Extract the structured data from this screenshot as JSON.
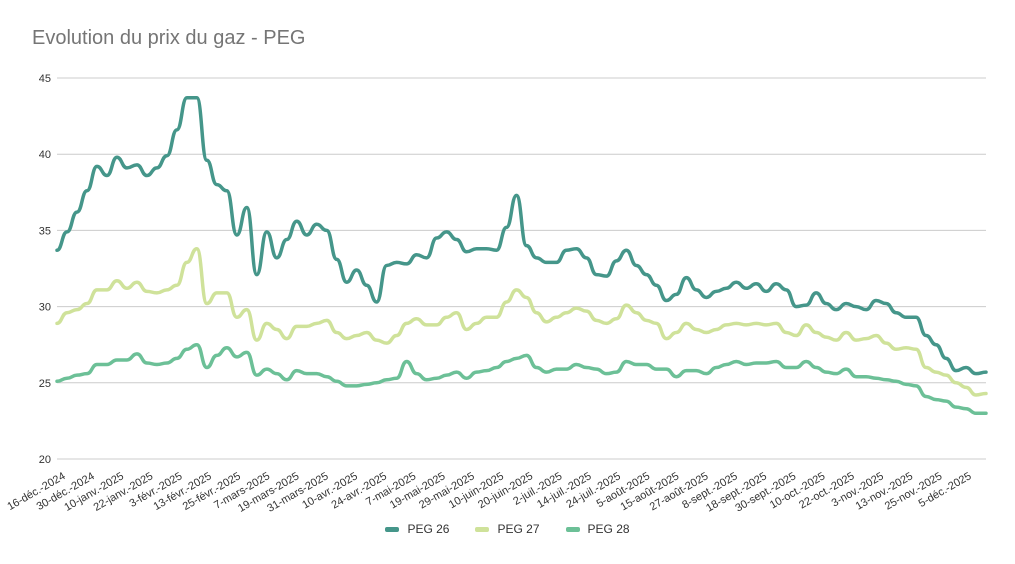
{
  "chart_data": {
    "type": "line",
    "title": "Evolution du prix du gaz - PEG",
    "xlabel": "",
    "ylabel": "",
    "ylim": [
      20,
      45
    ],
    "yticks": [
      20,
      25,
      30,
      35,
      40,
      45
    ],
    "grid": true,
    "legend_position": "bottom",
    "x_tick_labels": [
      "16-déc.-2024",
      "30-déc.-2024",
      "10-janv.-2025",
      "22-janv.-2025",
      "3-févr.-2025",
      "13-févr.-2025",
      "25-févr.-2025",
      "7-mars-2025",
      "19-mars-2025",
      "31-mars-2025",
      "10-avr.-2025",
      "24-avr.-2025",
      "7-mai-2025",
      "19-mai-2025",
      "29-mai-2025",
      "10-juin-2025",
      "20-juin-2025",
      "2-juil.-2025",
      "14-juil.-2025",
      "24-juil.-2025",
      "5-août-2025",
      "15-août-2025",
      "27-août-2025",
      "8-sept.-2025",
      "18-sept.-2025",
      "30-sept.-2025",
      "10-oct.-2025",
      "22-oct.-2025",
      "3-nov.-2025",
      "13-nov.-2025",
      "25-nov.-2025",
      "5-déc.-2025"
    ],
    "series": [
      {
        "name": "PEG 26",
        "color": "#45968a",
        "values": [
          33.7,
          34.9,
          36.2,
          37.6,
          39.2,
          38.6,
          39.8,
          39.1,
          39.3,
          38.6,
          39.1,
          39.9,
          41.6,
          43.7,
          43.7,
          39.6,
          38.0,
          37.6,
          34.7,
          36.5,
          32.1,
          34.9,
          33.2,
          34.4,
          35.6,
          34.7,
          35.4,
          35.0,
          33.1,
          31.6,
          32.4,
          31.4,
          30.3,
          32.7,
          32.9,
          32.8,
          33.4,
          33.2,
          34.5,
          34.9,
          34.4,
          33.6,
          33.8,
          33.8,
          33.7,
          35.2,
          37.3,
          34.0,
          33.2,
          32.9,
          32.9,
          33.7,
          33.8,
          33.2,
          32.1,
          32.0,
          33.0,
          33.7,
          32.7,
          32.1,
          31.4,
          30.4,
          30.8,
          31.9,
          31.1,
          30.6,
          31.0,
          31.2,
          31.6,
          31.2,
          31.5,
          31.0,
          31.5,
          31.1,
          30.0,
          30.1,
          30.9,
          30.2,
          29.8,
          30.2,
          30.0,
          29.8,
          30.4,
          30.2,
          29.6,
          29.3,
          29.3,
          28.1,
          27.5,
          26.6,
          25.8,
          26.0,
          25.6,
          25.7
        ]
      },
      {
        "name": "PEG 27",
        "color": "#cfe29a",
        "values": [
          28.9,
          29.6,
          29.8,
          30.2,
          31.1,
          31.1,
          31.7,
          31.2,
          31.6,
          31.0,
          30.9,
          31.1,
          31.4,
          32.9,
          33.8,
          30.2,
          30.9,
          30.9,
          29.3,
          29.8,
          27.8,
          28.9,
          28.5,
          27.9,
          28.7,
          28.7,
          28.9,
          29.1,
          28.3,
          27.9,
          28.1,
          28.3,
          27.8,
          27.6,
          28.1,
          28.9,
          29.2,
          28.8,
          28.8,
          29.3,
          29.6,
          28.5,
          28.9,
          29.3,
          29.3,
          30.3,
          31.1,
          30.6,
          29.6,
          29.0,
          29.3,
          29.6,
          29.9,
          29.7,
          29.1,
          28.9,
          29.2,
          30.1,
          29.6,
          29.1,
          28.9,
          27.9,
          28.3,
          28.9,
          28.5,
          28.3,
          28.5,
          28.8,
          28.9,
          28.8,
          28.9,
          28.8,
          28.9,
          28.3,
          28.1,
          28.8,
          28.3,
          28.0,
          27.8,
          28.3,
          27.8,
          27.9,
          28.1,
          27.6,
          27.2,
          27.3,
          27.2,
          26.0,
          25.7,
          25.5,
          25.0,
          24.7,
          24.2,
          24.3
        ]
      },
      {
        "name": "PEG 28",
        "color": "#6cc097",
        "values": [
          25.1,
          25.3,
          25.5,
          25.6,
          26.2,
          26.2,
          26.5,
          26.5,
          26.9,
          26.3,
          26.2,
          26.3,
          26.6,
          27.2,
          27.5,
          26.0,
          26.8,
          27.3,
          26.7,
          27.0,
          25.5,
          25.9,
          25.6,
          25.2,
          25.8,
          25.6,
          25.6,
          25.4,
          25.1,
          24.8,
          24.8,
          24.9,
          25.0,
          25.2,
          25.3,
          26.4,
          25.6,
          25.2,
          25.3,
          25.5,
          25.7,
          25.3,
          25.7,
          25.8,
          26.0,
          26.4,
          26.6,
          26.8,
          26.0,
          25.7,
          25.9,
          25.9,
          26.2,
          26.0,
          25.9,
          25.6,
          25.7,
          26.4,
          26.2,
          26.2,
          25.9,
          25.9,
          25.4,
          25.8,
          25.8,
          25.6,
          26.0,
          26.2,
          26.4,
          26.2,
          26.3,
          26.3,
          26.4,
          26.0,
          26.0,
          26.4,
          26.0,
          25.7,
          25.6,
          25.9,
          25.4,
          25.4,
          25.3,
          25.2,
          25.1,
          24.9,
          24.8,
          24.1,
          23.9,
          23.8,
          23.4,
          23.3,
          23.0,
          23.0
        ]
      }
    ]
  }
}
